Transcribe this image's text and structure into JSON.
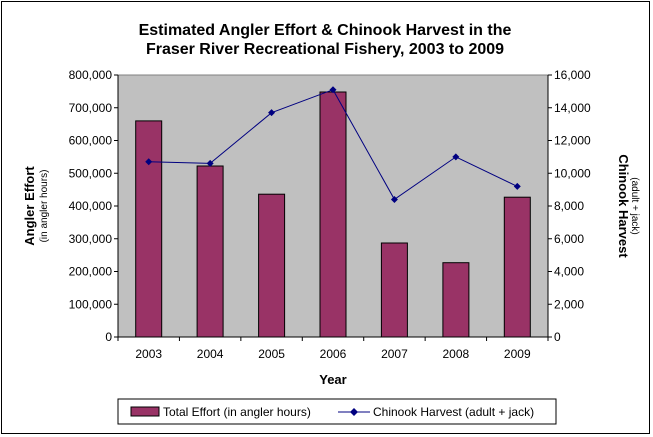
{
  "chart_data": {
    "type": "bar",
    "title_lines": [
      "Estimated Angler Effort & Chinook Harvest in the",
      "Fraser River Recreational Fishery, 2003 to 2009"
    ],
    "categories": [
      "2003",
      "2004",
      "2005",
      "2006",
      "2007",
      "2008",
      "2009"
    ],
    "xlabel": "Year",
    "y_left": {
      "label": "Angler Effort",
      "sublabel": "(in angler hours)",
      "range": [
        0,
        800000
      ],
      "ticks": [
        0,
        100000,
        200000,
        300000,
        400000,
        500000,
        600000,
        700000,
        800000
      ],
      "tick_labels": [
        "0",
        "100,000",
        "200,000",
        "300,000",
        "400,000",
        "500,000",
        "600,000",
        "700,000",
        "800,000"
      ]
    },
    "y_right": {
      "label": "Chinook Harvest",
      "sublabel": "(adult + jack)",
      "range": [
        0,
        16000
      ],
      "ticks": [
        0,
        2000,
        4000,
        6000,
        8000,
        10000,
        12000,
        14000,
        16000
      ],
      "tick_labels": [
        "0",
        "2,000",
        "4,000",
        "6,000",
        "8,000",
        "10,000",
        "12,000",
        "14,000",
        "16,000"
      ]
    },
    "series": [
      {
        "name": "Total Effort (in angler hours)",
        "kind": "bar",
        "axis": "left",
        "color": "#993366",
        "values": [
          660000,
          522000,
          436000,
          748000,
          287000,
          227000,
          427000
        ]
      },
      {
        "name": "Chinook Harvest (adult + jack)",
        "kind": "line",
        "axis": "right",
        "color": "#000080",
        "marker": "diamond",
        "values": [
          10700,
          10600,
          13700,
          15100,
          8400,
          11000,
          9200
        ]
      }
    ],
    "grid": false,
    "plot_background": "#c0c0c0",
    "legend": "bottom"
  }
}
